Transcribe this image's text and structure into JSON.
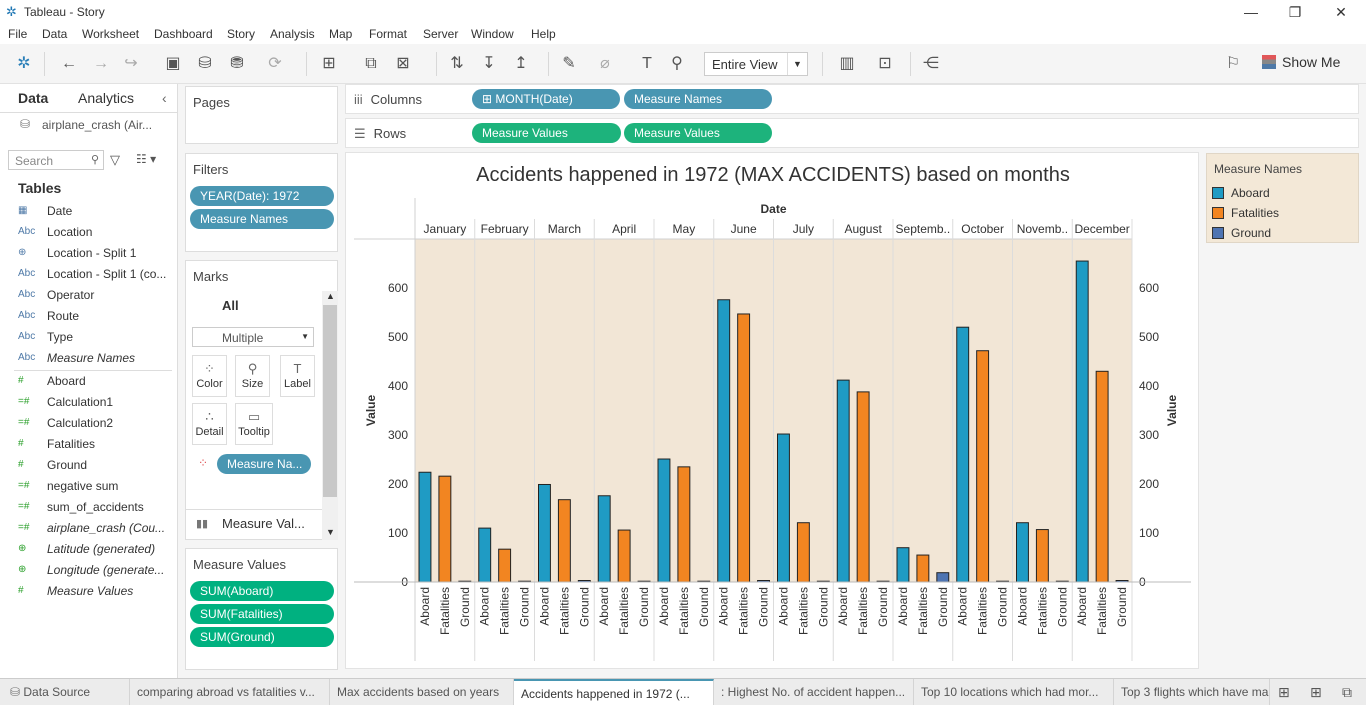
{
  "window": {
    "title": "Tableau - Story",
    "minimize": "—",
    "restore": "❐",
    "close": "✕"
  },
  "menu": [
    "File",
    "Data",
    "Worksheet",
    "Dashboard",
    "Story",
    "Analysis",
    "Map",
    "Format",
    "Server",
    "Window",
    "Help"
  ],
  "toolbar": {
    "fit_select": "Entire View",
    "show_me": "Show Me"
  },
  "data_pane": {
    "tab_data": "Data",
    "tab_analytics": "Analytics",
    "collapse": "‹",
    "source": "airplane_crash (Air...",
    "search_placeholder": "Search",
    "tables_heading": "Tables",
    "dimensions": [
      {
        "icon": "▦",
        "name": "Date"
      },
      {
        "icon": "Abc",
        "name": "Location"
      },
      {
        "icon": "⊕",
        "name": "Location - Split 1"
      },
      {
        "icon": "Abc",
        "name": "Location - Split 1 (co..."
      },
      {
        "icon": "Abc",
        "name": "Operator"
      },
      {
        "icon": "Abc",
        "name": "Route"
      },
      {
        "icon": "Abc",
        "name": "Type"
      },
      {
        "icon": "Abc",
        "name": "Measure Names"
      }
    ],
    "measures": [
      {
        "icon": "#",
        "name": "Aboard"
      },
      {
        "icon": "=#",
        "name": "Calculation1"
      },
      {
        "icon": "=#",
        "name": "Calculation2"
      },
      {
        "icon": "#",
        "name": "Fatalities"
      },
      {
        "icon": "#",
        "name": "Ground"
      },
      {
        "icon": "=#",
        "name": "negative sum"
      },
      {
        "icon": "=#",
        "name": "sum_of_accidents"
      },
      {
        "icon": "=#",
        "name": "airplane_crash (Cou..."
      },
      {
        "icon": "⊕",
        "name": "Latitude (generated)"
      },
      {
        "icon": "⊕",
        "name": "Longitude (generate..."
      },
      {
        "icon": "#",
        "name": "Measure Values"
      }
    ]
  },
  "pages": {
    "title": "Pages"
  },
  "filters": {
    "title": "Filters",
    "pills": [
      "YEAR(Date): 1972",
      "Measure Names"
    ]
  },
  "marks": {
    "title": "Marks",
    "all": "All",
    "mark_type": "Multiple",
    "buttons": [
      "Color",
      "Size",
      "Label",
      "Detail",
      "Tooltip"
    ],
    "color_pill": "Measure Na...",
    "measure_values": "Measure Val..."
  },
  "measure_values_card": {
    "title": "Measure Values",
    "pills": [
      "SUM(Aboard)",
      "SUM(Fatalities)",
      "SUM(Ground)"
    ]
  },
  "shelves": {
    "columns_label": "Columns",
    "rows_label": "Rows",
    "columns": [
      "MONTH(Date)",
      "Measure Names"
    ],
    "rows": [
      "Measure Values",
      "Measure Values"
    ]
  },
  "legend": {
    "title": "Measure Names",
    "items": [
      {
        "name": "Aboard",
        "color": "#1f9bc4"
      },
      {
        "name": "Fatalities",
        "color": "#f28521"
      },
      {
        "name": "Ground",
        "color": "#4e74b2"
      }
    ]
  },
  "colors": {
    "plot_bg": "#f2e6d6",
    "aboard": "#1f9bc4",
    "fatalities": "#f28521",
    "ground": "#4e74b2",
    "pill_blue": "#4996b2",
    "pill_green": "#1db37c"
  },
  "chart_data": {
    "type": "bar",
    "title": "Accidents happened in 1972 (MAX ACCIDENTS) based on months",
    "header_label": "Date",
    "ylabel": "Value",
    "ylim": [
      0,
      700
    ],
    "yticks": [
      0,
      100,
      200,
      300,
      400,
      500,
      600
    ],
    "categories": [
      "January",
      "February",
      "March",
      "April",
      "May",
      "June",
      "July",
      "August",
      "Septemb..",
      "October",
      "Novemb..",
      "December"
    ],
    "subcategories": [
      "Aboard",
      "Fatalities",
      "Ground"
    ],
    "series": [
      {
        "name": "Aboard",
        "values": [
          224,
          110,
          199,
          176,
          251,
          576,
          302,
          412,
          70,
          520,
          121,
          655
        ]
      },
      {
        "name": "Fatalities",
        "values": [
          216,
          67,
          168,
          106,
          235,
          547,
          121,
          388,
          55,
          472,
          107,
          430
        ]
      },
      {
        "name": "Ground",
        "values": [
          0,
          0,
          2,
          0,
          0,
          3,
          0,
          0,
          19,
          0,
          0,
          3
        ]
      }
    ]
  },
  "bottom_tabs": [
    "Data Source",
    "comparing abroad vs fatalities v...",
    "Max accidents based on years",
    "Accidents happened in 1972 (...",
    ": Highest No. of accident happen...",
    "Top 10 locations which had mor...",
    "Top 3 flights which have ma"
  ]
}
